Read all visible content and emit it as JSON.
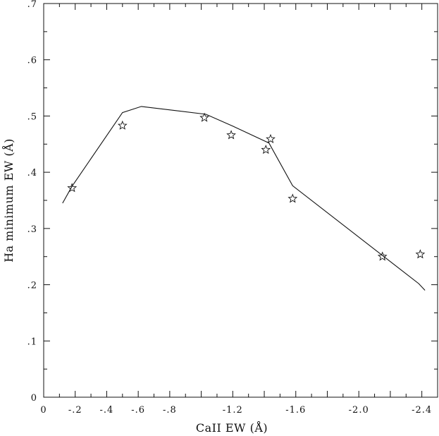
{
  "chart_data": {
    "type": "line",
    "title": "",
    "xlabel": "CaII EW (Å)",
    "ylabel": "Ha minimum EW (Å)",
    "xlim": [
      0,
      -2.5
    ],
    "ylim": [
      0,
      0.7
    ],
    "grid": false,
    "x_ticks": [
      0,
      -0.2,
      -0.4,
      -0.6,
      -0.8,
      -1.0,
      -1.2,
      -1.4,
      -1.6,
      -1.8,
      -2.0,
      -2.2,
      -2.4
    ],
    "x_tick_labels": [
      "0",
      "-.2",
      "-.4",
      "-.6",
      "-.8",
      "",
      "-1.2",
      "",
      "-1.6",
      "",
      "-2.0",
      "",
      "-2.4"
    ],
    "y_ticks": [
      0,
      0.1,
      0.2,
      0.3,
      0.4,
      0.5,
      0.6,
      0.7
    ],
    "y_tick_labels": [
      "0",
      ".1",
      ".2",
      ".3",
      ".4",
      ".5",
      ".6",
      ".7"
    ],
    "series": [
      {
        "kind": "line",
        "x": [
          -0.12,
          -0.18,
          -0.5,
          -0.62,
          -1.03,
          -1.2,
          -1.43,
          -1.58,
          -2.38,
          -2.42
        ],
        "y": [
          0.345,
          0.375,
          0.506,
          0.517,
          0.503,
          0.482,
          0.452,
          0.376,
          0.202,
          0.19
        ]
      },
      {
        "kind": "points",
        "marker": "star",
        "x": [
          -0.18,
          -0.5,
          -1.02,
          -1.19,
          -1.41,
          -1.44,
          -1.58,
          -2.15,
          -2.39
        ],
        "y": [
          0.372,
          0.483,
          0.497,
          0.466,
          0.44,
          0.459,
          0.353,
          0.25,
          0.254
        ]
      }
    ]
  }
}
